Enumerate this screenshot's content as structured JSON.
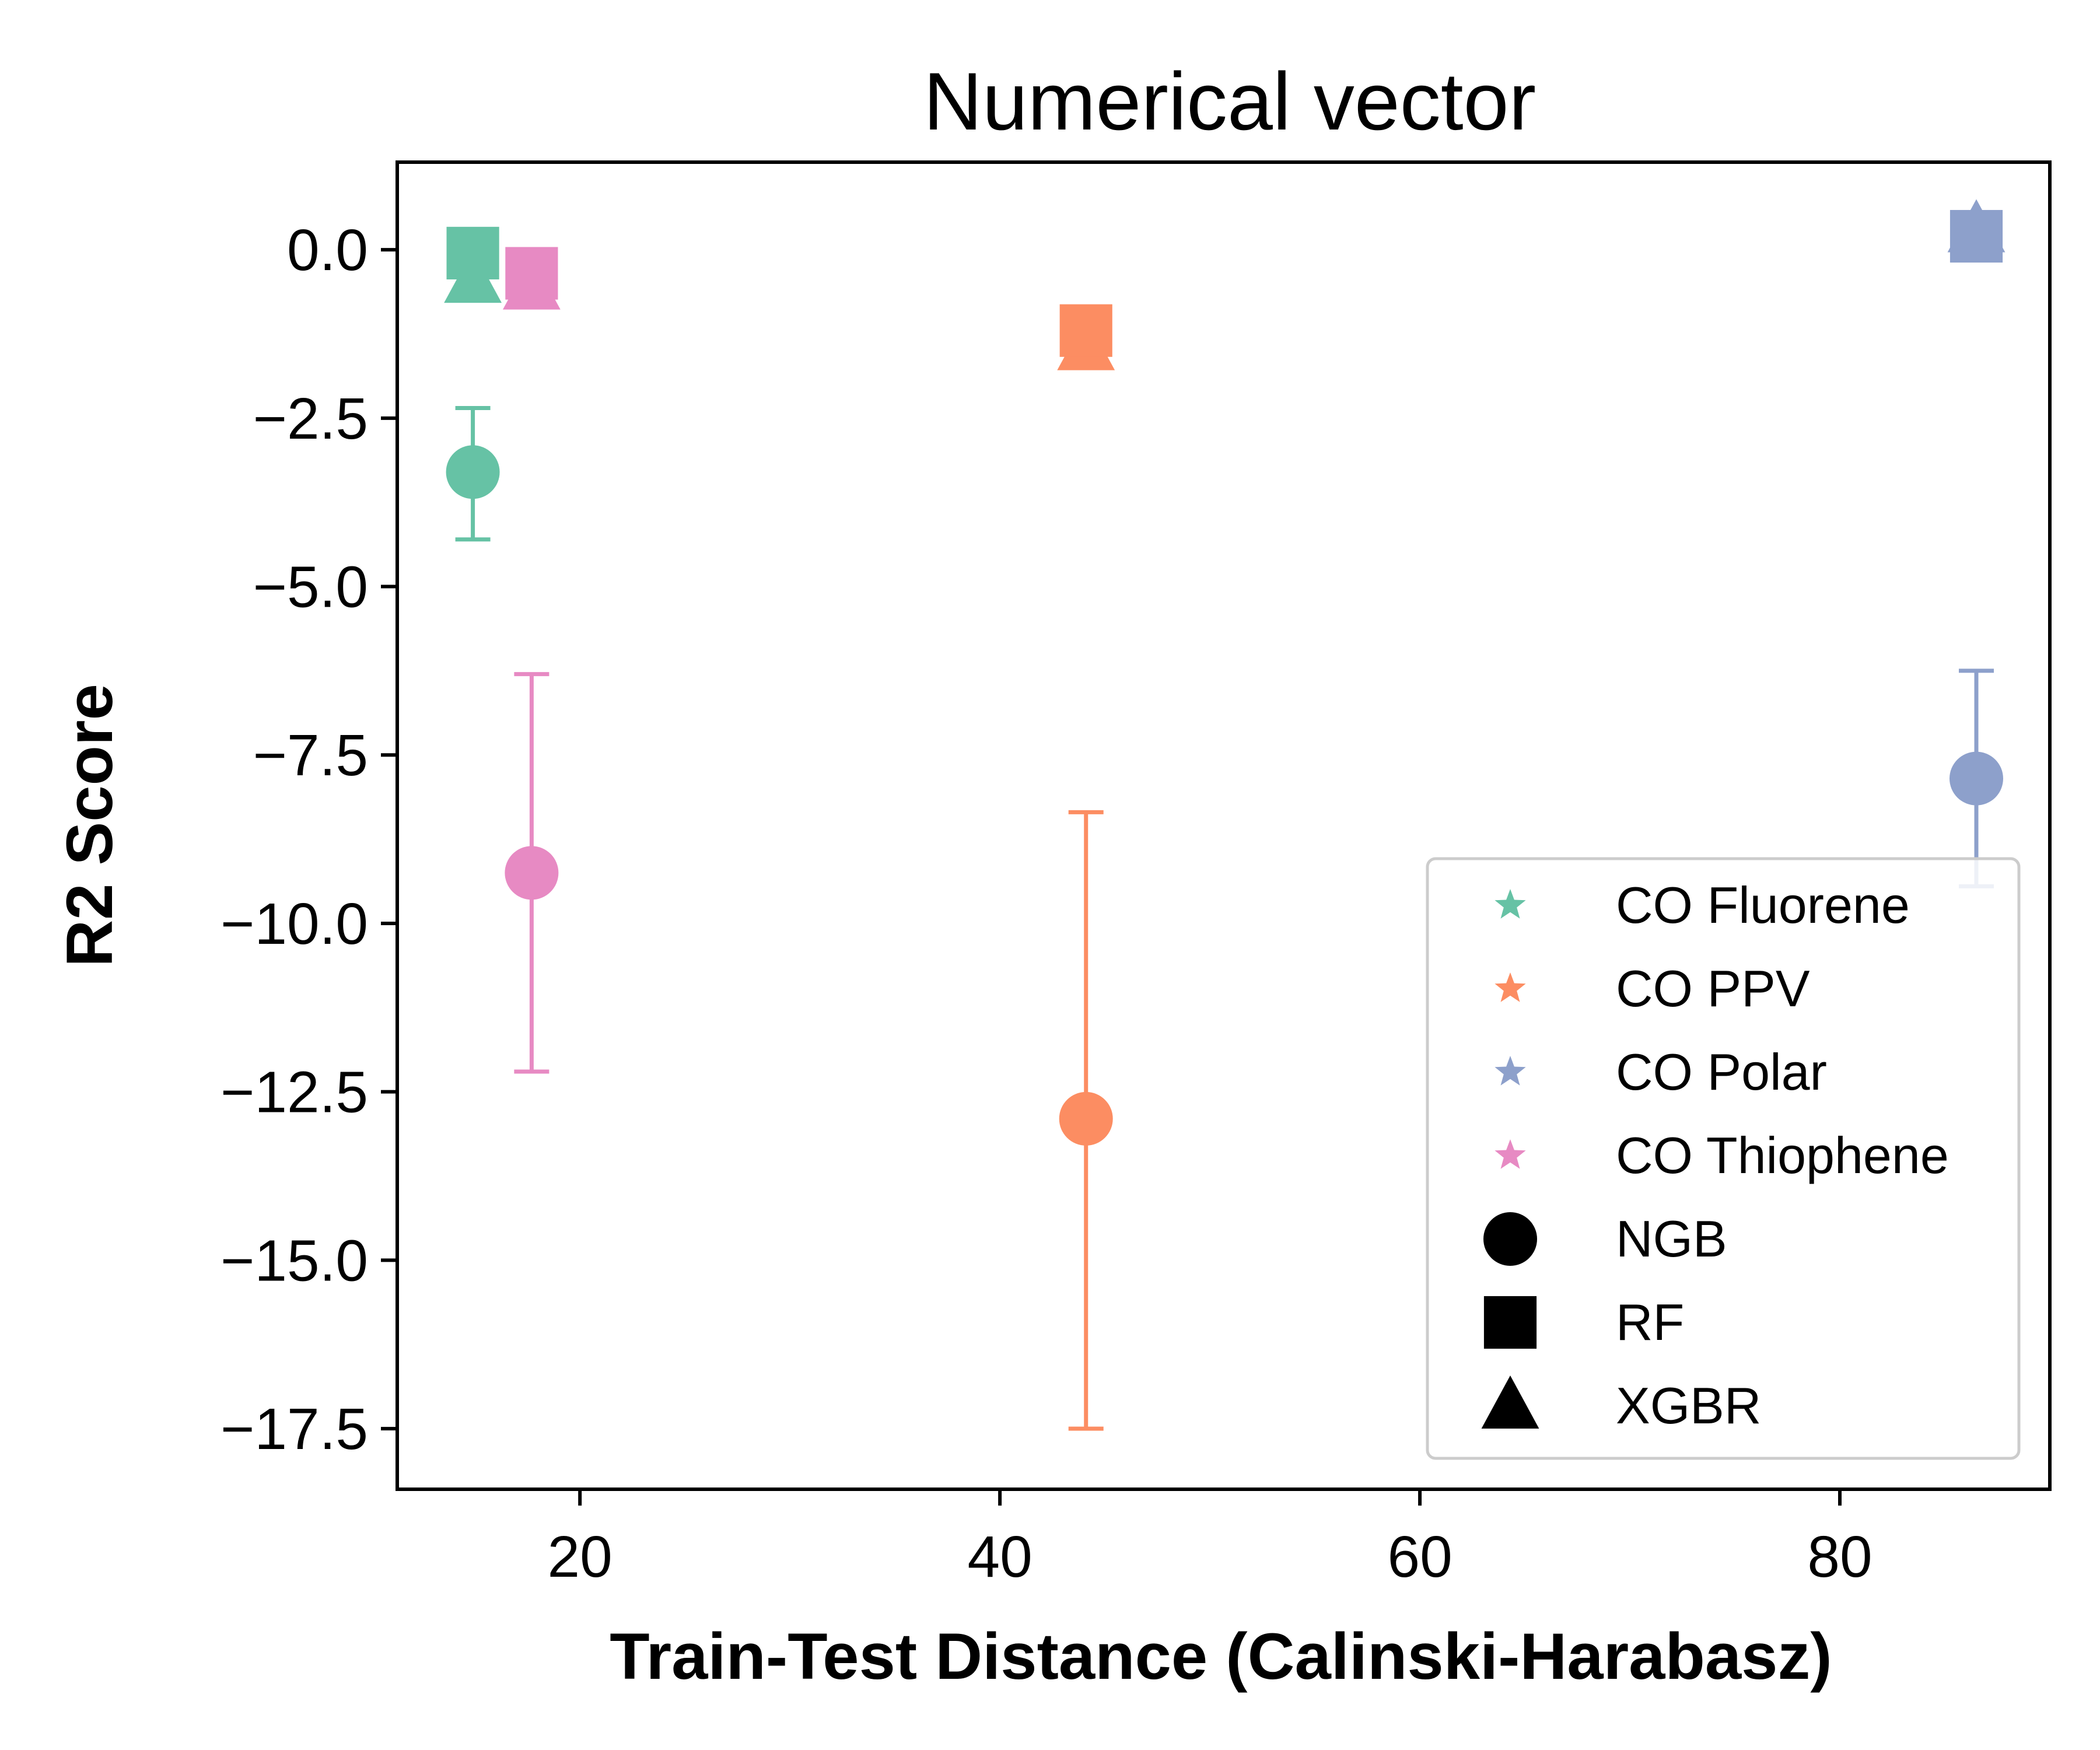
{
  "chart_data": {
    "type": "scatter",
    "title": "Numerical vector",
    "xlabel": "Train-Test Distance (Calinski-Harabasz)",
    "ylabel": "R2 Score",
    "xlim": [
      11.3,
      90.0
    ],
    "ylim": [
      -18.4,
      1.3
    ],
    "xticks": [
      20,
      40,
      60,
      80
    ],
    "xtick_labels": [
      "20",
      "40",
      "60",
      "80"
    ],
    "yticks": [
      0.0,
      -2.5,
      -5.0,
      -7.5,
      -10.0,
      -12.5,
      -15.0,
      -17.5
    ],
    "ytick_labels": [
      "0.0",
      "−2.5",
      "−5.0",
      "−7.5",
      "−10.0",
      "−12.5",
      "−15.0",
      "−17.5"
    ],
    "grid": false,
    "legend_position": "lower right",
    "groups": [
      {
        "name": "CO Fluorene",
        "color": "#66c2a5",
        "x": 14.9,
        "points": [
          {
            "model": "NGB",
            "y": -3.3,
            "yerr_low": -4.3,
            "yerr_high": -2.35
          },
          {
            "model": "RF",
            "y": -0.05
          },
          {
            "model": "XGBR",
            "y": -0.45
          }
        ]
      },
      {
        "name": "CO PPV",
        "color": "#fc8d62",
        "x": 44.1,
        "points": [
          {
            "model": "NGB",
            "y": -12.9,
            "yerr_low": -17.5,
            "yerr_high": -8.35
          },
          {
            "model": "RF",
            "y": -1.2
          },
          {
            "model": "XGBR",
            "y": -1.45
          }
        ]
      },
      {
        "name": "CO Polar",
        "color": "#8da0cb",
        "x": 86.5,
        "points": [
          {
            "model": "NGB",
            "y": -7.85,
            "yerr_low": -9.45,
            "yerr_high": -6.25
          },
          {
            "model": "RF",
            "y": 0.2
          },
          {
            "model": "XGBR",
            "y": 0.3
          }
        ]
      },
      {
        "name": "CO Thiophene",
        "color": "#e78ac3",
        "x": 17.7,
        "points": [
          {
            "model": "NGB",
            "y": -9.25,
            "yerr_low": -12.2,
            "yerr_high": -6.3
          },
          {
            "model": "RF",
            "y": -0.35
          },
          {
            "model": "XGBR",
            "y": -0.55
          }
        ]
      }
    ],
    "legend_entries": [
      {
        "label": "CO Fluorene",
        "marker": "star",
        "color": "#66c2a5"
      },
      {
        "label": "CO PPV",
        "marker": "star",
        "color": "#fc8d62"
      },
      {
        "label": "CO Polar",
        "marker": "star",
        "color": "#8da0cb"
      },
      {
        "label": "CO Thiophene",
        "marker": "star",
        "color": "#e78ac3"
      },
      {
        "label": "NGB",
        "marker": "circle",
        "color": "#000000"
      },
      {
        "label": "RF",
        "marker": "square",
        "color": "#000000"
      },
      {
        "label": "XGBR",
        "marker": "triangle",
        "color": "#000000"
      }
    ]
  }
}
